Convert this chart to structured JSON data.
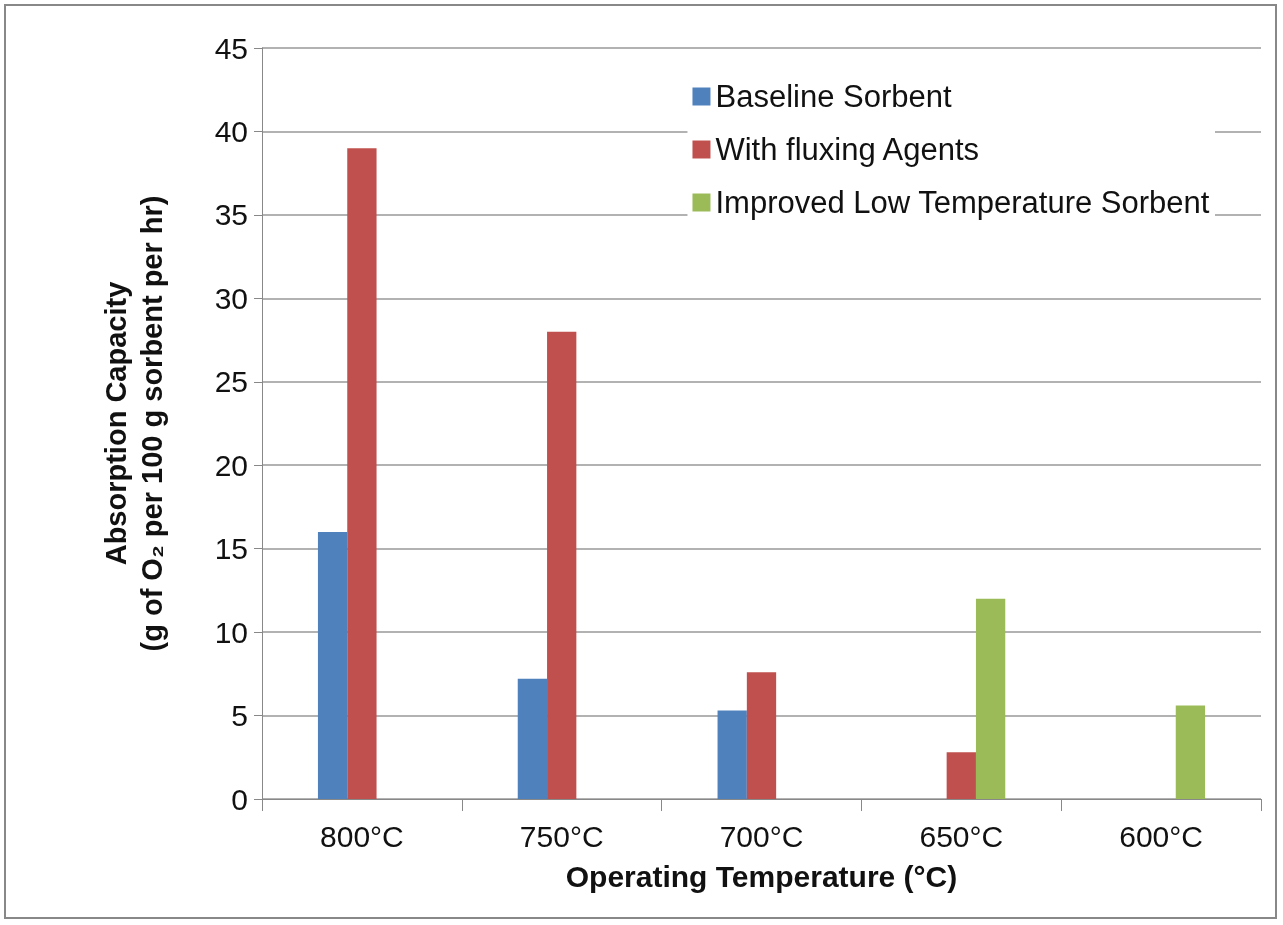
{
  "chart_data": {
    "type": "bar",
    "xlabel": "Operating Temperature (°C)",
    "ylabel": "Absorption Capacity\n(g of O₂ per 100 g sorbent per hr)",
    "categories": [
      "800°C",
      "750°C",
      "700°C",
      "650°C",
      "600°C"
    ],
    "series": [
      {
        "name": "Baseline Sorbent",
        "color": "#4f81bd",
        "values": [
          16,
          7.2,
          5.3,
          null,
          null
        ]
      },
      {
        "name": "With fluxing Agents",
        "color": "#c0504d",
        "values": [
          39,
          28,
          7.6,
          2.8,
          null
        ]
      },
      {
        "name": "Improved Low Temperature Sorbent",
        "color": "#9bbb59",
        "values": [
          null,
          null,
          null,
          12,
          5.6
        ]
      }
    ],
    "ylim": [
      0,
      45
    ],
    "yticks": [
      0,
      5,
      10,
      15,
      20,
      25,
      30,
      35,
      40,
      45
    ],
    "grid": "y",
    "legend": "top right"
  }
}
